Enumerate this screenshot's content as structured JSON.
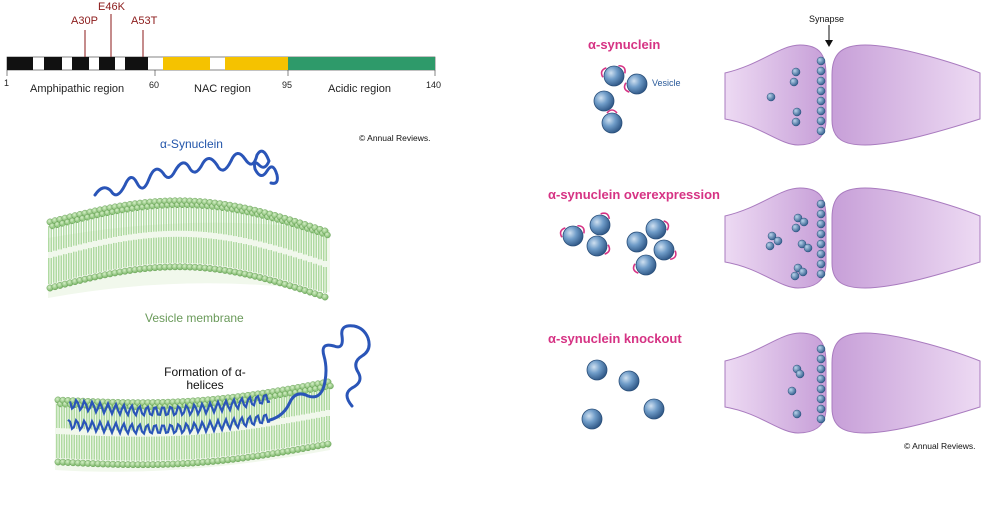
{
  "domain": {
    "mutations": [
      "A30P",
      "E46K",
      "A53T"
    ],
    "regions": [
      "Amphipathic region",
      "NAC region",
      "Acidic region"
    ],
    "positions": [
      "1",
      "60",
      "95",
      "140"
    ],
    "colors": {
      "amphipathic": "#111111",
      "nac": "#f5c200",
      "acidic": "#2e9a6a",
      "mutation": "#8b1a1a"
    }
  },
  "membrane": {
    "protein_label": "α-Synuclein",
    "membrane_label": "Vesicle membrane",
    "helix_label": "Formation of α-helices",
    "colors": {
      "protein": "#2a55b8",
      "lipid": "#8fcf7a"
    }
  },
  "synapse_panels": {
    "synapse_label": "Synapse",
    "vesicle_label": "Vesicle",
    "titles": [
      "α-synuclein",
      "α-synuclein overexpression",
      "α-synuclein knockout"
    ],
    "colors": {
      "title": "#d63384",
      "vesicle": "#4a7db8",
      "neuron": "#d9b8e6"
    }
  },
  "copyright": "© Annual Reviews."
}
